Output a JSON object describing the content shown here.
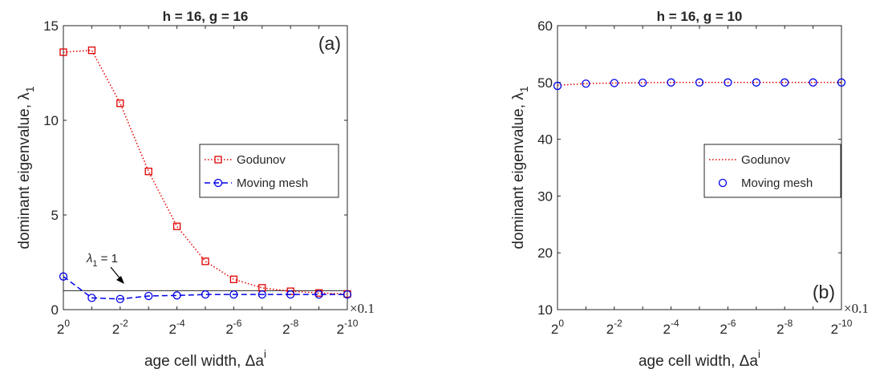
{
  "chart_data": [
    {
      "type": "line",
      "title": "h = 16, g = 16",
      "panel_label": "(a)",
      "xlabel": "age cell width, Δa",
      "xlabel_sup": "i",
      "ylabel": "dominant eigenvalue, λ",
      "ylabel_sub": "1",
      "x_ticks": {
        "base": "2",
        "exponents": [
          "0",
          "-2",
          "-4",
          "-6",
          "-8",
          "-10"
        ]
      },
      "x_multiplier": "×0.1",
      "ylim": [
        0,
        15
      ],
      "y_ticks": [
        "0",
        "5",
        "10",
        "15"
      ],
      "x_exponents": [
        0,
        -1,
        -2,
        -3,
        -4,
        -5,
        -6,
        -7,
        -8,
        -9,
        -10
      ],
      "series": [
        {
          "name": "Godunov",
          "color": "#e00000",
          "marker": "square",
          "line": "dotted",
          "values": [
            13.6,
            13.7,
            10.9,
            7.3,
            4.4,
            2.55,
            1.6,
            1.15,
            0.97,
            0.88,
            0.83
          ]
        },
        {
          "name": "Moving mesh",
          "color": "#0000e6",
          "marker": "circle",
          "line": "dashed",
          "values": [
            1.75,
            0.62,
            0.56,
            0.72,
            0.75,
            0.8,
            0.8,
            0.8,
            0.8,
            0.8,
            0.8
          ]
        }
      ],
      "reference_line": {
        "y": 1,
        "label": "λ",
        "label_sub": "1",
        "label_rest": " = 1"
      },
      "legend_position": "middle-right"
    },
    {
      "type": "line",
      "title": "h = 16, g = 10",
      "panel_label": "(b)",
      "xlabel": "age cell width, Δa",
      "xlabel_sup": "i",
      "ylabel": "dominant eigenvalue, λ",
      "ylabel_sub": "1",
      "x_ticks": {
        "base": "2",
        "exponents": [
          "0",
          "-2",
          "-4",
          "-6",
          "-8",
          "-10"
        ]
      },
      "x_multiplier": "×0.1",
      "ylim": [
        10,
        60
      ],
      "y_ticks": [
        "10",
        "20",
        "30",
        "40",
        "50",
        "60"
      ],
      "x_exponents": [
        0,
        -1,
        -2,
        -3,
        -4,
        -5,
        -6,
        -7,
        -8,
        -9,
        -10
      ],
      "series": [
        {
          "name": "Godunov",
          "color": "#e00000",
          "marker": "none",
          "line": "dotted",
          "values": [
            49.5,
            49.8,
            49.9,
            49.95,
            50,
            50,
            50,
            50,
            50,
            50,
            50
          ]
        },
        {
          "name": "Moving mesh",
          "color": "#0000e6",
          "marker": "circle",
          "line": "none",
          "values": [
            49.4,
            49.8,
            49.9,
            49.95,
            50,
            50,
            50,
            50,
            50,
            50,
            50
          ]
        }
      ],
      "legend_position": "middle-right"
    }
  ]
}
